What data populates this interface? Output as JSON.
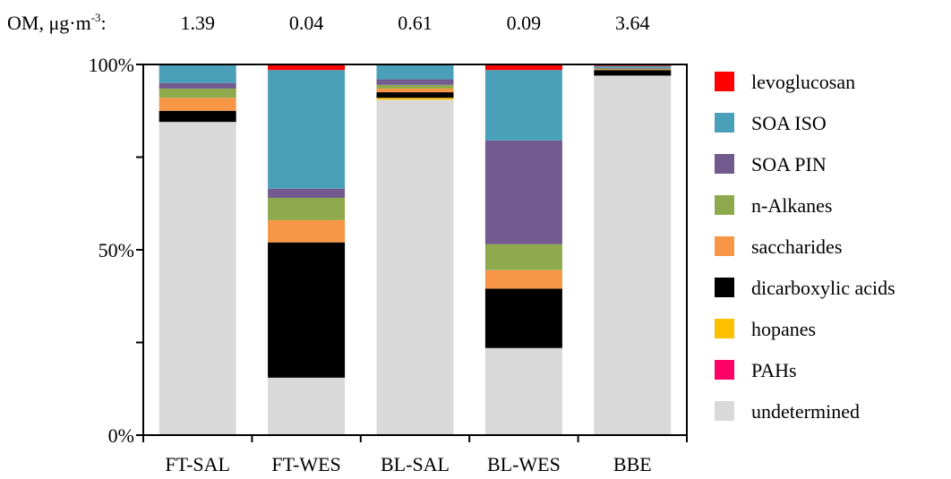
{
  "chart_data": {
    "type": "bar",
    "stacked": true,
    "normalized": true,
    "om_label": "OM, μg·m",
    "om_unit_exp": "-3",
    "om_colon": ":",
    "om_values": [
      "1.39",
      "0.04",
      "0.61",
      "0.09",
      "3.64"
    ],
    "categories": [
      "FT-SAL",
      "FT-WES",
      "BL-SAL",
      "BL-WES",
      "BBE"
    ],
    "ylim": [
      0,
      100
    ],
    "yticks": [
      0,
      50,
      100
    ],
    "ytick_labels": [
      "0%",
      "50%",
      "100%"
    ],
    "yminor_ticks": [
      25,
      75
    ],
    "legend_position": "right",
    "series": [
      {
        "name": "undetermined",
        "color": "#d9d9d9",
        "values": [
          84.5,
          15.5,
          90.5,
          23.5,
          97.0
        ]
      },
      {
        "name": "PAHs",
        "color": "#ff0066",
        "values": [
          0.0,
          0.0,
          0.0,
          0.0,
          0.0
        ]
      },
      {
        "name": "hopanes",
        "color": "#ffc000",
        "values": [
          0.0,
          0.0,
          0.5,
          0.0,
          0.0
        ]
      },
      {
        "name": "dicarboxylic acids",
        "color": "#000000",
        "values": [
          3.0,
          36.5,
          1.5,
          16.0,
          1.5
        ]
      },
      {
        "name": "saccharides",
        "color": "#f79646",
        "values": [
          3.5,
          6.0,
          1.0,
          5.0,
          0.2
        ]
      },
      {
        "name": "n-Alkanes",
        "color": "#8faa4c",
        "values": [
          2.5,
          6.0,
          1.0,
          7.0,
          0.2
        ]
      },
      {
        "name": "SOA PIN",
        "color": "#725a8e",
        "values": [
          1.5,
          2.5,
          1.5,
          28.0,
          0.2
        ]
      },
      {
        "name": "SOA ISO",
        "color": "#4aa0b8",
        "values": [
          5.0,
          32.0,
          4.0,
          19.0,
          0.5
        ]
      },
      {
        "name": "levoglucosan",
        "color": "#ff0000",
        "values": [
          0.0,
          1.5,
          0.0,
          1.5,
          0.4
        ]
      }
    ]
  }
}
